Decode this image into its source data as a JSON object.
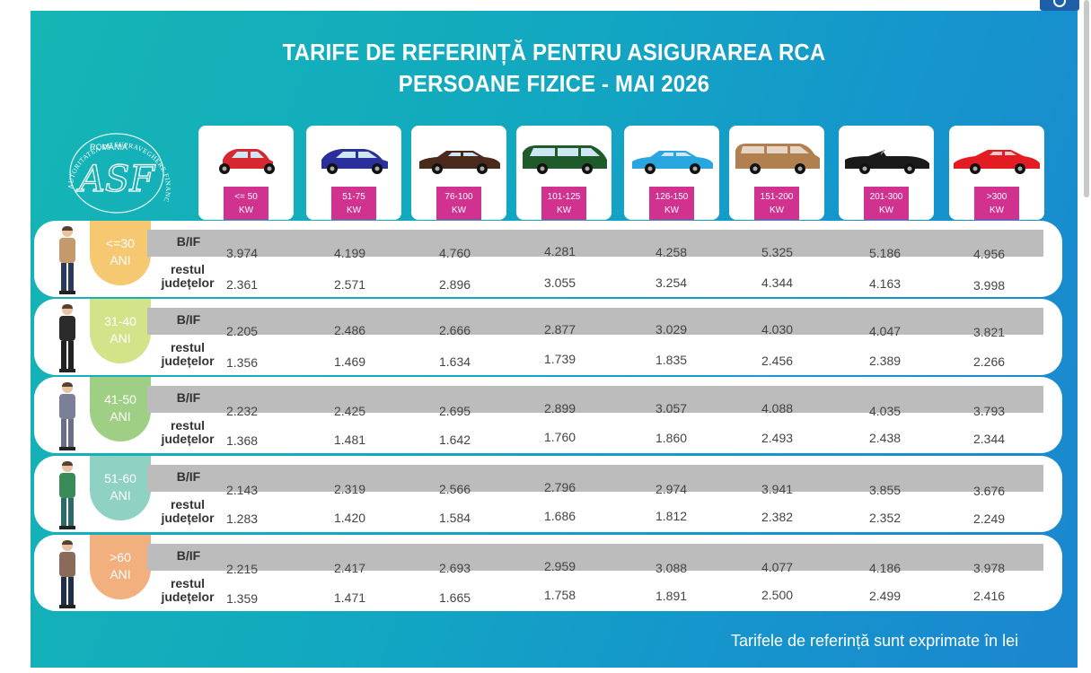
{
  "title": {
    "line1": "TARIFE DE REFERINȚĂ PENTRU ASIGURAREA RCA",
    "line2": "PERSOANE FIZICE - MAI 2026"
  },
  "logo": {
    "country": "ROMÂNIA",
    "monogram": "ASF",
    "ring_text": "AUTORITATEA DE SUPRAVEGHERE FINANCIARĂ"
  },
  "power_classes": [
    {
      "range": "<= 50",
      "unit": "KW",
      "car_color": "#d7282f",
      "car_type": "hatch-small"
    },
    {
      "range": "51-75",
      "unit": "KW",
      "car_color": "#2b2f9c",
      "car_type": "hatch"
    },
    {
      "range": "76-100",
      "unit": "KW",
      "car_color": "#4a2a1c",
      "car_type": "sedan"
    },
    {
      "range": "101-125",
      "unit": "KW",
      "car_color": "#1e5a2a",
      "car_type": "minivan"
    },
    {
      "range": "126-150",
      "unit": "KW",
      "car_color": "#29a6e0",
      "car_type": "sedan"
    },
    {
      "range": "151-200",
      "unit": "KW",
      "car_color": "#b08050",
      "car_type": "suv"
    },
    {
      "range": "201-300",
      "unit": "KW",
      "car_color": "#1a1a1a",
      "car_type": "cabrio"
    },
    {
      "range": ">300",
      "unit": "KW",
      "car_color": "#e31b23",
      "car_type": "sport"
    }
  ],
  "row_labels": {
    "bif": "B/IF",
    "rest_line1": "restul",
    "rest_line2": "județelor"
  },
  "age_groups": [
    {
      "age": "<=30",
      "suffix": "ANI",
      "color": "#f7c872",
      "bif": [
        "3.974",
        "4.199",
        "4.760",
        "4.281",
        "4.258",
        "5.325",
        "5.186",
        "4.956"
      ],
      "rest": [
        "2.361",
        "2.571",
        "2.896",
        "3.055",
        "3.254",
        "4.344",
        "4.163",
        "3.998"
      ]
    },
    {
      "age": "31-40",
      "suffix": "ANI",
      "color": "#d2e38a",
      "bif": [
        "2.205",
        "2.486",
        "2.666",
        "2.877",
        "3.029",
        "4.030",
        "4.047",
        "3.821"
      ],
      "rest": [
        "1.356",
        "1.469",
        "1.634",
        "1.739",
        "1.835",
        "2.456",
        "2.389",
        "2.266"
      ]
    },
    {
      "age": "41-50",
      "suffix": "ANI",
      "color": "#9fcf84",
      "bif": [
        "2.232",
        "2.425",
        "2.695",
        "2.899",
        "3.057",
        "4.088",
        "4.035",
        "3.793"
      ],
      "rest": [
        "1.368",
        "1.481",
        "1.642",
        "1.760",
        "1.860",
        "2.493",
        "2.438",
        "2.344"
      ]
    },
    {
      "age": "51-60",
      "suffix": "ANI",
      "color": "#8fd1c3",
      "bif": [
        "2.143",
        "2.319",
        "2.566",
        "2.796",
        "2.974",
        "3.941",
        "3.855",
        "3.676"
      ],
      "rest": [
        "1.283",
        "1.420",
        "1.584",
        "1.686",
        "1.812",
        "2.382",
        "2.352",
        "2.249"
      ]
    },
    {
      "age": ">60",
      "suffix": "ANI",
      "color": "#f2b07f",
      "bif": [
        "2.215",
        "2.417",
        "2.693",
        "2.959",
        "3.088",
        "4.077",
        "4.186",
        "3.978"
      ],
      "rest": [
        "1.359",
        "1.471",
        "1.665",
        "1.758",
        "1.891",
        "2.500",
        "2.499",
        "2.416"
      ]
    }
  ],
  "footer": "Tarifele de referință sunt exprimate în lei",
  "colors": {
    "poster_start": "#15b6b4",
    "poster_end": "#1b86cf",
    "kw_tag": "#d1318f",
    "bar": "#bcbcbc"
  }
}
